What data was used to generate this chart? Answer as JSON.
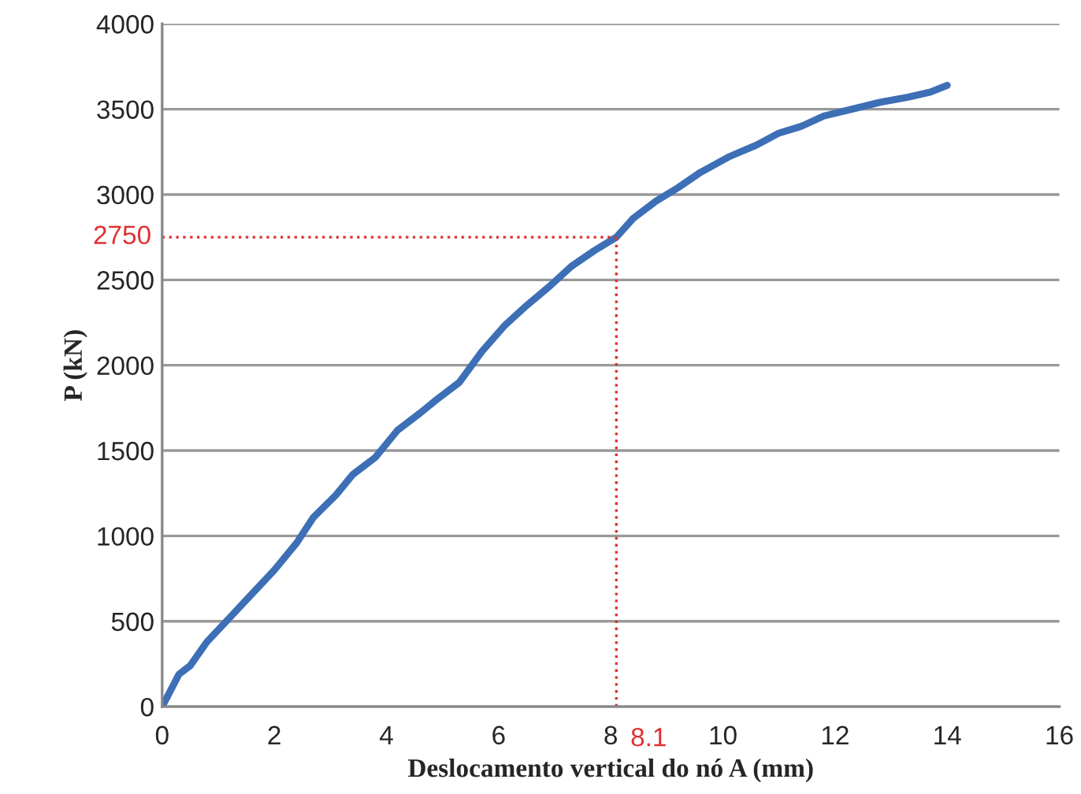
{
  "chart_data": {
    "type": "line",
    "xlabel": "Deslocamento vertical do nó A (mm)",
    "ylabel": "P (kN)",
    "x": [
      0,
      0.3,
      0.5,
      0.8,
      1.2,
      1.6,
      2,
      2.4,
      2.7,
      3.1,
      3.4,
      3.8,
      4.2,
      4.6,
      4.9,
      5.3,
      5.7,
      6.1,
      6.5,
      6.9,
      7.3,
      7.7,
      8.1,
      8.4,
      8.8,
      9.2,
      9.6,
      10.1,
      10.6,
      11.0,
      11.4,
      11.8,
      12.3,
      12.8,
      13.3,
      13.7,
      14
    ],
    "series": [
      {
        "color": "#3d6fb6",
        "values": [
          0,
          190,
          240,
          380,
          520,
          660,
          800,
          960,
          1110,
          1240,
          1360,
          1460,
          1620,
          1720,
          1800,
          1900,
          2080,
          2230,
          2350,
          2460,
          2580,
          2670,
          2750,
          2860,
          2960,
          3040,
          3130,
          3220,
          3290,
          3360,
          3400,
          3460,
          3500,
          3540,
          3570,
          3600,
          3640
        ]
      }
    ],
    "xlim": [
      0,
      16
    ],
    "xticks": [
      0,
      2,
      4,
      6,
      8,
      10,
      12,
      14,
      16
    ],
    "ylim": [
      0,
      4000
    ],
    "yticks": [
      0,
      500,
      1000,
      1500,
      2000,
      2500,
      3000,
      3500,
      4000
    ],
    "grid": "y",
    "marker": "none",
    "line_style": "solid",
    "ref_lines": [
      {
        "axis": "y",
        "value": 2750,
        "label": "2750",
        "color": "#e03030",
        "line_style": "dotted"
      },
      {
        "axis": "x",
        "value": 8.1,
        "label": "8.1",
        "color": "#e03030",
        "line_style": "dotted"
      }
    ]
  }
}
